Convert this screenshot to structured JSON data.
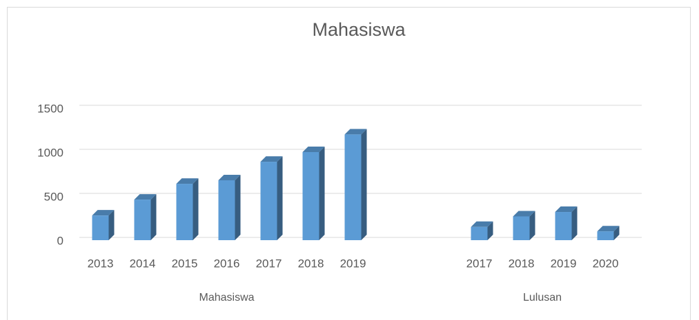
{
  "chart_data": {
    "type": "bar3d",
    "title": "Mahasiswa",
    "groups": [
      {
        "name": "Mahasiswa",
        "categories": [
          "2013",
          "2014",
          "2015",
          "2016",
          "2017",
          "2018",
          "2019"
        ],
        "values": [
          280,
          460,
          640,
          680,
          890,
          1000,
          1200
        ]
      },
      {
        "name": "Lulusan",
        "categories": [
          "2017",
          "2018",
          "2019",
          "2020"
        ],
        "values": [
          150,
          270,
          320,
          100
        ]
      }
    ],
    "color": "#5b9bd5",
    "ylim": [
      0,
      1500
    ],
    "yticks": [
      0,
      500,
      1000,
      1500
    ],
    "grid": true
  }
}
